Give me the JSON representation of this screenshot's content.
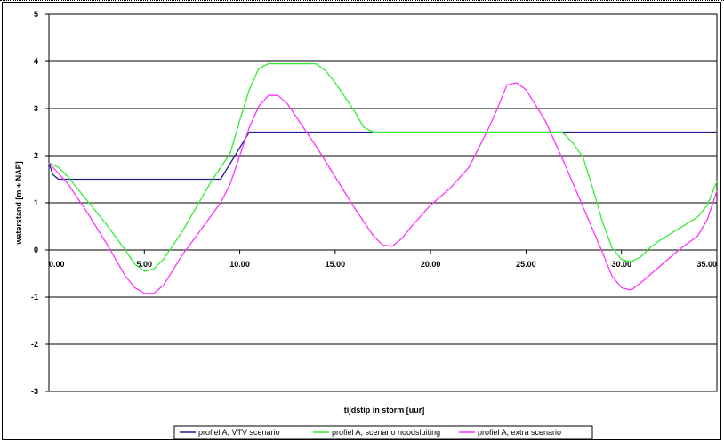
{
  "chart_data": {
    "type": "line",
    "xlabel": "tijdstip in storm [uur]",
    "ylabel": "waterstand [m + NAP]",
    "xlim": [
      0,
      35
    ],
    "ylim": [
      -3,
      5
    ],
    "x_ticks": [
      "0.00",
      "5.00",
      "10.00",
      "15.00",
      "20.00",
      "25.00",
      "30.00",
      "35.00"
    ],
    "y_ticks": [
      "-3",
      "-2",
      "-1",
      "0",
      "1",
      "2",
      "3",
      "4",
      "5"
    ],
    "grid": "horizontal",
    "legend_position": "bottom",
    "series": [
      {
        "name": "profiel A, VTV scenario",
        "color": "#1f1f8f",
        "x": [
          0,
          0.2,
          0.5,
          9,
          10.5,
          35
        ],
        "y": [
          1.85,
          1.6,
          1.5,
          1.5,
          2.5,
          2.5
        ]
      },
      {
        "name": "profiel A, scenario noodsluiting",
        "color": "#33ee33",
        "x": [
          0,
          0.5,
          1,
          2,
          3,
          4,
          4.5,
          5,
          5.5,
          6,
          7,
          8,
          8.5,
          9,
          9.5,
          10,
          10.5,
          11,
          11.5,
          12,
          13,
          14,
          14.5,
          15,
          15.5,
          16,
          16.5,
          17,
          20,
          26.9,
          27.5,
          28,
          28.5,
          29,
          29.5,
          30,
          30.5,
          31,
          31.5,
          32,
          33,
          34,
          34.5,
          35
        ],
        "y": [
          1.85,
          1.75,
          1.55,
          1.05,
          0.55,
          0.0,
          -0.3,
          -0.45,
          -0.4,
          -0.2,
          0.4,
          1.1,
          1.45,
          1.75,
          2.05,
          2.75,
          3.4,
          3.85,
          3.95,
          3.95,
          3.95,
          3.95,
          3.8,
          3.55,
          3.25,
          2.95,
          2.6,
          2.5,
          2.5,
          2.5,
          2.25,
          1.95,
          1.3,
          0.6,
          0.05,
          -0.2,
          -0.25,
          -0.15,
          0.05,
          0.2,
          0.45,
          0.7,
          0.95,
          1.45
        ]
      },
      {
        "name": "profiel A, extra scenario",
        "color": "#ff33ff",
        "x": [
          0,
          1,
          2,
          3,
          4,
          4.5,
          5,
          5.5,
          6,
          7,
          8,
          9,
          9.5,
          10,
          10.5,
          11,
          11.5,
          12,
          12.5,
          13,
          14,
          15,
          16,
          17,
          17.5,
          18,
          18.5,
          19,
          20,
          21,
          22,
          23,
          23.5,
          24,
          24.5,
          25,
          26,
          27,
          28,
          29,
          29.5,
          30,
          30.5,
          31,
          32,
          33,
          34,
          34.5,
          35
        ],
        "y": [
          1.85,
          1.4,
          0.8,
          0.15,
          -0.55,
          -0.8,
          -0.92,
          -0.92,
          -0.75,
          -0.1,
          0.45,
          1.0,
          1.4,
          2.0,
          2.6,
          3.05,
          3.28,
          3.28,
          3.1,
          2.8,
          2.2,
          1.55,
          0.9,
          0.3,
          0.1,
          0.08,
          0.25,
          0.5,
          0.95,
          1.3,
          1.75,
          2.55,
          3.0,
          3.5,
          3.55,
          3.4,
          2.75,
          1.85,
          0.9,
          -0.05,
          -0.55,
          -0.8,
          -0.85,
          -0.7,
          -0.35,
          0.0,
          0.3,
          0.65,
          1.25
        ]
      }
    ]
  }
}
